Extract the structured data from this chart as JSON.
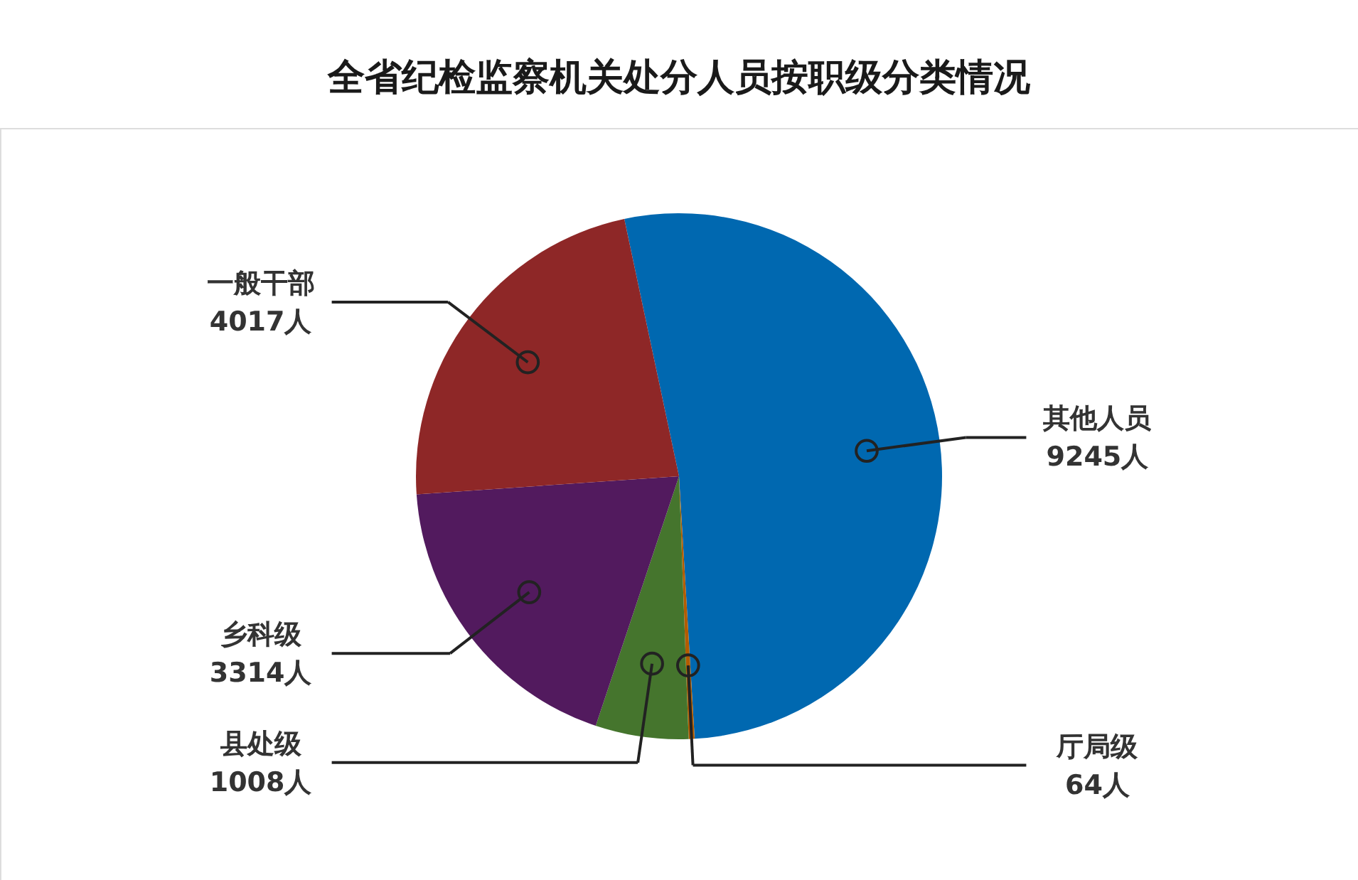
{
  "chart_data": {
    "type": "pie",
    "title": "全省纪检监察机关处分人员按职级分类情况",
    "categories": [
      "其他人员",
      "厅局级",
      "县处级",
      "乡科级",
      "一般干部"
    ],
    "values": [
      9245,
      64,
      1008,
      3314,
      4017
    ],
    "value_labels": [
      "9245人",
      "64人",
      "1008人",
      "3314人",
      "4017人"
    ],
    "colors": [
      "#0068b0",
      "#b35c00",
      "#45752d",
      "#521a5e",
      "#8e2727"
    ]
  }
}
